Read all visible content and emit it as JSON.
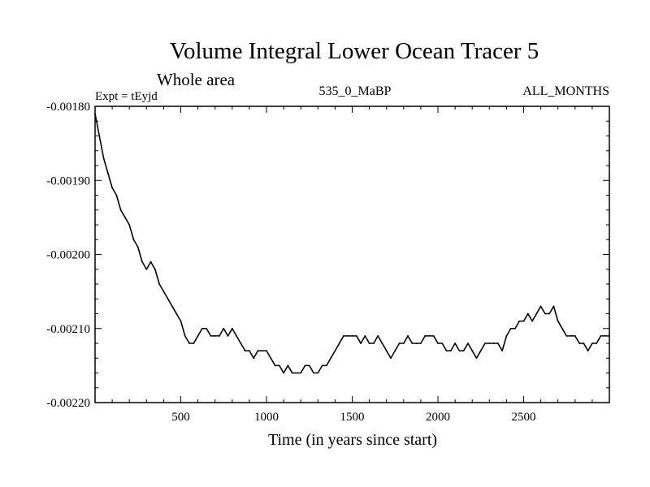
{
  "chart_data": {
    "type": "line",
    "title": "Volume Integral Lower Ocean Tracer 5",
    "subtitle": "Whole area",
    "expt_label": "Expt = tEyjd",
    "center_label": "535_0_MaBP",
    "right_label": "ALL_MONTHS",
    "xlabel": "Time (in years since start)",
    "ylabel": "",
    "xlim": [
      0,
      3000
    ],
    "ylim": [
      -0.0022,
      -0.0018
    ],
    "x_ticks": [
      500,
      1000,
      1500,
      2000,
      2500
    ],
    "x_tick_labels": [
      "500",
      "1000",
      "1500",
      "2000",
      "2500"
    ],
    "y_ticks": [
      -0.0018,
      -0.0019,
      -0.002,
      -0.0021,
      -0.0022
    ],
    "y_tick_labels": [
      "-0.00180",
      "-0.00190",
      "-0.00200",
      "-0.00210",
      "-0.00220"
    ],
    "grid": false,
    "series": [
      {
        "name": "Volume Integral Lower Ocean Tracer 5",
        "color": "#000000",
        "x": [
          0,
          25,
          50,
          75,
          100,
          125,
          150,
          175,
          200,
          225,
          250,
          275,
          300,
          325,
          350,
          375,
          400,
          425,
          450,
          475,
          500,
          525,
          550,
          575,
          600,
          625,
          650,
          675,
          700,
          725,
          750,
          775,
          800,
          825,
          850,
          875,
          900,
          925,
          950,
          975,
          1000,
          1025,
          1050,
          1075,
          1100,
          1125,
          1150,
          1175,
          1200,
          1225,
          1250,
          1275,
          1300,
          1325,
          1350,
          1375,
          1400,
          1425,
          1450,
          1475,
          1500,
          1525,
          1550,
          1575,
          1600,
          1625,
          1650,
          1675,
          1700,
          1725,
          1750,
          1775,
          1800,
          1825,
          1850,
          1875,
          1900,
          1925,
          1950,
          1975,
          2000,
          2025,
          2050,
          2075,
          2100,
          2125,
          2150,
          2175,
          2200,
          2225,
          2250,
          2275,
          2300,
          2325,
          2350,
          2375,
          2400,
          2425,
          2450,
          2475,
          2500,
          2525,
          2550,
          2575,
          2600,
          2625,
          2650,
          2675,
          2700,
          2725,
          2750,
          2775,
          2800,
          2825,
          2850,
          2875,
          2900,
          2925,
          2950,
          2975,
          3000
        ],
        "y": [
          -0.00181,
          -0.00184,
          -0.00187,
          -0.00189,
          -0.00191,
          -0.00192,
          -0.00194,
          -0.00195,
          -0.00196,
          -0.00198,
          -0.00199,
          -0.00201,
          -0.00202,
          -0.00201,
          -0.00202,
          -0.00204,
          -0.00205,
          -0.00206,
          -0.00207,
          -0.00208,
          -0.00209,
          -0.00211,
          -0.00212,
          -0.00212,
          -0.00211,
          -0.0021,
          -0.0021,
          -0.00211,
          -0.00211,
          -0.00211,
          -0.0021,
          -0.00211,
          -0.0021,
          -0.00211,
          -0.00212,
          -0.00213,
          -0.00213,
          -0.00214,
          -0.00213,
          -0.00213,
          -0.00213,
          -0.00214,
          -0.00215,
          -0.00215,
          -0.00216,
          -0.00215,
          -0.00216,
          -0.00216,
          -0.00216,
          -0.00215,
          -0.00215,
          -0.00216,
          -0.00216,
          -0.00215,
          -0.00215,
          -0.00214,
          -0.00213,
          -0.00212,
          -0.00211,
          -0.00211,
          -0.00211,
          -0.00211,
          -0.00212,
          -0.00211,
          -0.00212,
          -0.00212,
          -0.00211,
          -0.00212,
          -0.00213,
          -0.00214,
          -0.00213,
          -0.00212,
          -0.00212,
          -0.00211,
          -0.00212,
          -0.00212,
          -0.00212,
          -0.00211,
          -0.00211,
          -0.00211,
          -0.00212,
          -0.00212,
          -0.00213,
          -0.00213,
          -0.00212,
          -0.00213,
          -0.00213,
          -0.00212,
          -0.00213,
          -0.00214,
          -0.00213,
          -0.00212,
          -0.00212,
          -0.00212,
          -0.00212,
          -0.00213,
          -0.00211,
          -0.0021,
          -0.0021,
          -0.00209,
          -0.00209,
          -0.00208,
          -0.00209,
          -0.00208,
          -0.00207,
          -0.00208,
          -0.00208,
          -0.00207,
          -0.00209,
          -0.0021,
          -0.00211,
          -0.00211,
          -0.00211,
          -0.00212,
          -0.00212,
          -0.00213,
          -0.00212,
          -0.00212,
          -0.00211,
          -0.00211,
          -0.00211
        ]
      }
    ]
  }
}
